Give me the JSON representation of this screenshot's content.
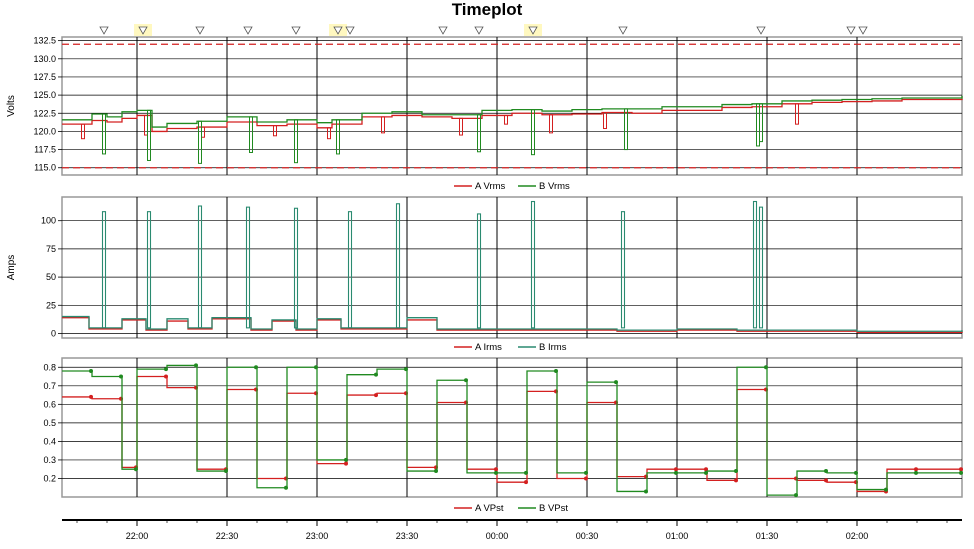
{
  "title": "Timeplot",
  "colors": {
    "a": "#d42020",
    "b": "#208a20",
    "b_amps": "#2a8a70",
    "limit": "#d42020",
    "marker_bg": "#fff8c0"
  },
  "x_axis": {
    "start": "21:35",
    "end": "02:35",
    "ticks": [
      {
        "t": "22:00",
        "label": "22:00"
      },
      {
        "t": "22:30",
        "label": "22:30"
      },
      {
        "t": "23:00",
        "label": "23:00"
      },
      {
        "t": "23:30",
        "label": "23:30"
      },
      {
        "t": "00:00",
        "label": "00:00"
      },
      {
        "t": "00:30",
        "label": "00:30"
      },
      {
        "t": "01:00",
        "label": "01:00"
      },
      {
        "t": "01:30",
        "label": "01:30"
      },
      {
        "t": "02:00",
        "label": "02:00"
      }
    ]
  },
  "event_markers": [
    "21:49",
    "22:02",
    "22:21",
    "22:37",
    "22:53",
    "23:07",
    "23:11",
    "23:42",
    "23:54",
    "24:12",
    "24:42",
    "25:28",
    "25:58",
    "26:02"
  ],
  "highlighted_markers": [
    "22:02",
    "23:07",
    "24:12"
  ],
  "chart_data": [
    {
      "type": "line",
      "ylabel": "Volts",
      "ylim": [
        114,
        133
      ],
      "yticks": [
        115.0,
        117.5,
        120.0,
        122.5,
        125.0,
        127.5,
        130.0,
        132.5
      ],
      "tick_labels": [
        "115.0",
        "117.5",
        "120.0",
        "122.5",
        "125.0",
        "127.5",
        "130.0",
        "132.5"
      ],
      "limits": [
        132.0,
        115.0
      ],
      "series": [
        {
          "name": "A Vrms",
          "key": "a",
          "x": [
            "21:35",
            "21:45",
            "21:50",
            "21:55",
            "22:00",
            "22:05",
            "22:10",
            "22:20",
            "22:30",
            "22:40",
            "22:50",
            "23:00",
            "23:05",
            "23:15",
            "23:25",
            "23:35",
            "23:45",
            "23:55",
            "00:05",
            "00:15",
            "00:25",
            "00:35",
            "00:45",
            "00:55",
            "01:05",
            "01:15",
            "01:25",
            "01:35",
            "01:45",
            "01:55",
            "02:05",
            "02:15",
            "02:25",
            "02:35"
          ],
          "y": [
            121.0,
            121.5,
            121.3,
            121.8,
            122.2,
            120.0,
            120.4,
            120.6,
            121.3,
            120.8,
            121.0,
            120.5,
            121.0,
            122.0,
            122.2,
            122.0,
            121.8,
            122.2,
            122.5,
            122.3,
            122.4,
            122.6,
            122.5,
            122.9,
            122.9,
            123.3,
            123.4,
            123.8,
            124.0,
            124.1,
            124.2,
            124.4,
            124.4,
            124.5
          ],
          "dips": [
            [
              "21:42",
              119.0
            ],
            [
              "22:03",
              119.5
            ],
            [
              "22:22",
              119.2
            ],
            [
              "22:46",
              119.4
            ],
            [
              "23:04",
              119.0
            ],
            [
              "23:22",
              119.8
            ],
            [
              "23:48",
              119.5
            ],
            [
              "00:03",
              121.0
            ],
            [
              "00:18",
              119.8
            ],
            [
              "00:36",
              120.4
            ],
            [
              "01:40",
              121.0
            ]
          ]
        },
        {
          "name": "B Vrms",
          "key": "b",
          "x": [
            "21:35",
            "21:45",
            "21:50",
            "21:55",
            "22:00",
            "22:05",
            "22:10",
            "22:20",
            "22:30",
            "22:40",
            "22:50",
            "23:00",
            "23:05",
            "23:15",
            "23:25",
            "23:35",
            "23:45",
            "23:55",
            "00:05",
            "00:15",
            "00:25",
            "00:35",
            "00:45",
            "00:55",
            "01:05",
            "01:15",
            "01:25",
            "01:35",
            "01:45",
            "01:55",
            "02:05",
            "02:15",
            "02:25",
            "02:35"
          ],
          "y": [
            121.6,
            122.4,
            122.0,
            122.7,
            122.9,
            120.6,
            121.1,
            121.4,
            122.0,
            121.3,
            121.6,
            121.2,
            121.6,
            122.5,
            122.7,
            122.3,
            122.3,
            122.9,
            123.0,
            122.8,
            123.0,
            123.1,
            123.1,
            123.4,
            123.4,
            123.7,
            123.8,
            124.2,
            124.3,
            124.4,
            124.5,
            124.6,
            124.6,
            124.9
          ],
          "dips": [
            [
              "21:49",
              116.9
            ],
            [
              "22:04",
              116.0
            ],
            [
              "22:21",
              115.6
            ],
            [
              "22:38",
              117.1
            ],
            [
              "22:53",
              115.7
            ],
            [
              "23:07",
              116.9
            ],
            [
              "23:54",
              117.2
            ],
            [
              "24:12",
              116.8
            ],
            [
              "24:43",
              117.5
            ],
            [
              "25:27",
              118.0
            ],
            [
              "25:28",
              118.6
            ]
          ]
        }
      ]
    },
    {
      "type": "line",
      "ylabel": "Amps",
      "ylim": [
        -4,
        121
      ],
      "yticks": [
        0,
        25,
        50,
        75,
        100
      ],
      "tick_labels": [
        "0",
        "25",
        "50",
        "75",
        "100"
      ],
      "series": [
        {
          "name": "A Irms",
          "key": "a",
          "x": [
            "21:35",
            "21:44",
            "21:55",
            "22:03",
            "22:10",
            "22:17",
            "22:25",
            "22:38",
            "22:45",
            "22:53",
            "23:00",
            "23:08",
            "23:15",
            "23:30",
            "23:40",
            "23:55",
            "00:15",
            "00:40",
            "01:00",
            "01:20",
            "01:35",
            "02:00",
            "02:35"
          ],
          "y": [
            14,
            4,
            12,
            3,
            11,
            4,
            13,
            3,
            11,
            3,
            12,
            4,
            4,
            12,
            3,
            3,
            3,
            2,
            3,
            2,
            2,
            1,
            2
          ],
          "spikes": []
        },
        {
          "name": "B Irms",
          "key": "b_amps",
          "x": [
            "21:35",
            "21:44",
            "21:55",
            "22:03",
            "22:10",
            "22:17",
            "22:25",
            "22:38",
            "22:45",
            "22:53",
            "23:00",
            "23:08",
            "23:15",
            "23:30",
            "23:40",
            "23:55",
            "00:15",
            "00:40",
            "01:00",
            "01:20",
            "01:35",
            "02:00",
            "02:35"
          ],
          "y": [
            15,
            5,
            13,
            4,
            13,
            5,
            14,
            4,
            12,
            4,
            13,
            5,
            5,
            14,
            4,
            4,
            4,
            3,
            4,
            3,
            3,
            2,
            3
          ],
          "spikes": [
            [
              "21:49",
              108
            ],
            [
              "22:04",
              108
            ],
            [
              "22:21",
              113
            ],
            [
              "22:37",
              112
            ],
            [
              "22:53",
              111
            ],
            [
              "23:11",
              108
            ],
            [
              "23:27",
              115
            ],
            [
              "23:54",
              106
            ],
            [
              "24:12",
              117
            ],
            [
              "24:42",
              108
            ],
            [
              "25:26",
              117
            ],
            [
              "25:28",
              112
            ]
          ]
        }
      ]
    },
    {
      "type": "line",
      "ylabel": "",
      "ylim": [
        0.1,
        0.85
      ],
      "yticks": [
        0.2,
        0.3,
        0.4,
        0.5,
        0.6,
        0.7,
        0.8
      ],
      "tick_labels": [
        "0.2",
        "0.3",
        "0.4",
        "0.5",
        "0.6",
        "0.7",
        "0.8"
      ],
      "series": [
        {
          "name": "A VPst",
          "key": "a",
          "x": [
            "21:35",
            "21:45",
            "21:55",
            "22:00",
            "22:10",
            "22:20",
            "22:30",
            "22:40",
            "22:50",
            "23:00",
            "23:10",
            "23:20",
            "23:30",
            "23:40",
            "23:50",
            "24:00",
            "24:10",
            "24:20",
            "24:30",
            "24:40",
            "24:50",
            "25:00",
            "25:10",
            "25:20",
            "25:30",
            "25:40",
            "25:50",
            "26:00",
            "26:10",
            "26:20"
          ],
          "y": [
            0.64,
            0.63,
            0.26,
            0.75,
            0.69,
            0.25,
            0.68,
            0.2,
            0.66,
            0.28,
            0.65,
            0.66,
            0.26,
            0.61,
            0.25,
            0.18,
            0.67,
            0.2,
            0.61,
            0.21,
            0.25,
            0.25,
            0.19,
            0.68,
            0.2,
            0.19,
            0.18,
            0.13,
            0.25,
            0.25
          ]
        },
        {
          "name": "B VPst",
          "key": "b",
          "x": [
            "21:35",
            "21:45",
            "21:55",
            "22:00",
            "22:10",
            "22:20",
            "22:30",
            "22:40",
            "22:50",
            "23:00",
            "23:10",
            "23:20",
            "23:30",
            "23:40",
            "23:50",
            "24:00",
            "24:10",
            "24:20",
            "24:30",
            "24:40",
            "24:50",
            "25:00",
            "25:10",
            "25:20",
            "25:30",
            "25:40",
            "25:50",
            "26:00",
            "26:10",
            "26:20"
          ],
          "y": [
            0.78,
            0.75,
            0.25,
            0.79,
            0.81,
            0.24,
            0.8,
            0.15,
            0.8,
            0.3,
            0.76,
            0.79,
            0.24,
            0.73,
            0.23,
            0.23,
            0.78,
            0.23,
            0.72,
            0.13,
            0.23,
            0.23,
            0.24,
            0.8,
            0.11,
            0.24,
            0.23,
            0.14,
            0.23,
            0.23
          ]
        }
      ]
    }
  ],
  "legends": [
    [
      "A Vrms",
      "B Vrms"
    ],
    [
      "A Irms",
      "B Irms"
    ],
    [
      "A VPst",
      "B VPst"
    ]
  ]
}
